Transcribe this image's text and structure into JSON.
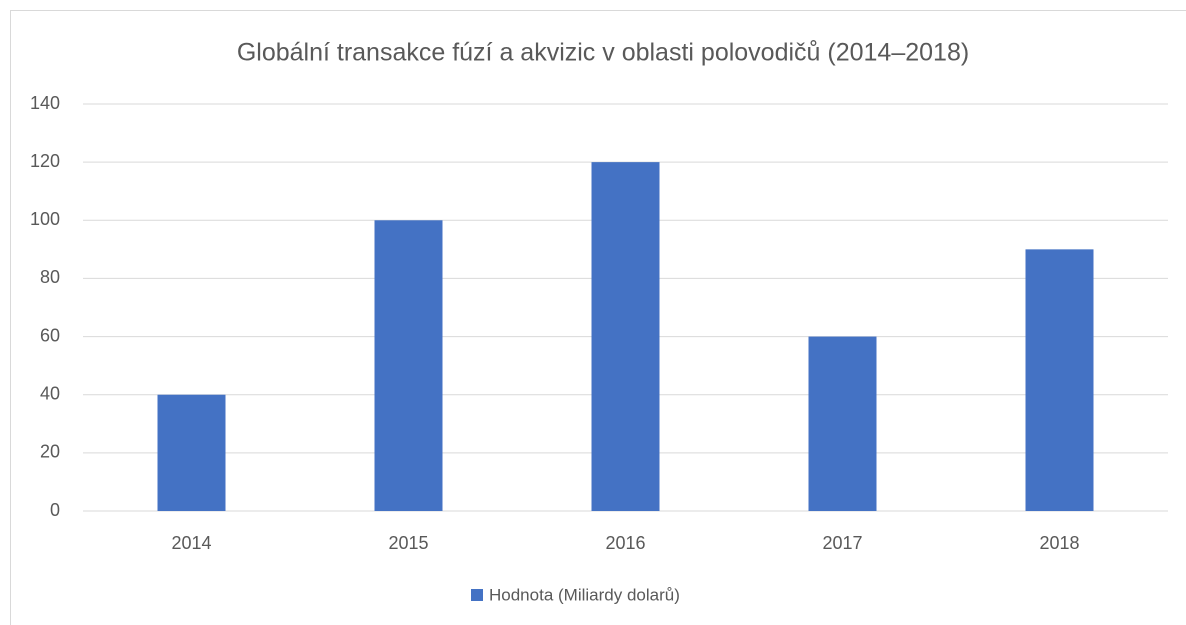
{
  "chart_data": {
    "type": "bar",
    "title": "Globální transakce fúzí a akvizic v oblasti polovodičů (2014–2018)",
    "categories": [
      "2014",
      "2015",
      "2016",
      "2017",
      "2018"
    ],
    "series": [
      {
        "name": "Hodnota (Miliardy dolarů)",
        "color": "#4472c4",
        "values": [
          40,
          100,
          120,
          60,
          90
        ]
      }
    ],
    "ylim": [
      0,
      140
    ],
    "yticks": [
      0,
      20,
      40,
      60,
      80,
      100,
      120,
      140
    ],
    "grid": true,
    "legend": "bottom"
  }
}
